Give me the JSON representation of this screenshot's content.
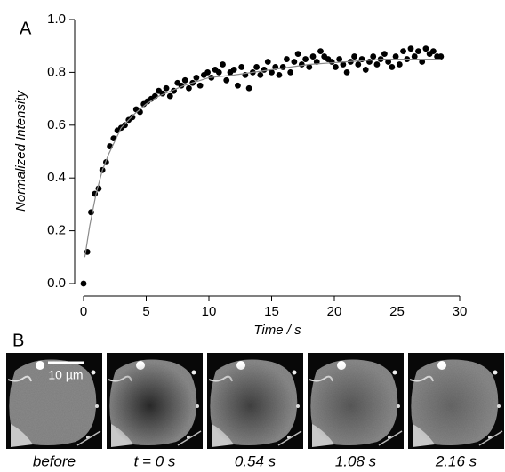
{
  "panel_labels": [
    "A",
    "B"
  ],
  "chart_data": {
    "type": "scatter",
    "y_label": "Normalized Intensity",
    "x_label": "Time  / s",
    "xlim": [
      0,
      30
    ],
    "xticks": [
      0,
      5,
      10,
      15,
      20,
      25,
      30
    ],
    "ylim": [
      0,
      1
    ],
    "yticks": [
      {
        "value": 0,
        "label": "0.0"
      },
      0.2,
      0.4,
      0.6,
      0.8,
      {
        "value": 1,
        "label": "1.0"
      }
    ],
    "series": [
      {
        "type": "scatter",
        "color": "#000000",
        "x": [
          0,
          0.3,
          0.6,
          0.9,
          1.2,
          1.5,
          1.8,
          2.1,
          2.4,
          2.7,
          3.0,
          3.3,
          3.6,
          3.9,
          4.2,
          4.5,
          4.8,
          5.1,
          5.4,
          5.7,
          6.0,
          6.3,
          6.6,
          6.9,
          7.2,
          7.5,
          7.8,
          8.1,
          8.4,
          8.7,
          9.0,
          9.3,
          9.6,
          9.9,
          10.2,
          10.5,
          10.8,
          11.1,
          11.4,
          11.7,
          12.0,
          12.3,
          12.6,
          12.9,
          13.2,
          13.5,
          13.8,
          14.1,
          14.4,
          14.7,
          15.0,
          15.3,
          15.6,
          15.9,
          16.2,
          16.5,
          16.8,
          17.1,
          17.4,
          17.7,
          18.0,
          18.3,
          18.6,
          18.9,
          19.2,
          19.5,
          19.8,
          20.1,
          20.4,
          20.7,
          21.0,
          21.3,
          21.6,
          21.9,
          22.2,
          22.5,
          22.8,
          23.1,
          23.4,
          23.7,
          24.0,
          24.3,
          24.6,
          24.9,
          25.2,
          25.5,
          25.8,
          26.1,
          26.4,
          26.7,
          27.0,
          27.3,
          27.6,
          27.9,
          28.2,
          28.5
        ],
        "values": [
          0,
          0.12,
          0.27,
          0.34,
          0.36,
          0.43,
          0.46,
          0.52,
          0.55,
          0.58,
          0.59,
          0.6,
          0.62,
          0.63,
          0.66,
          0.65,
          0.68,
          0.69,
          0.7,
          0.71,
          0.73,
          0.72,
          0.74,
          0.71,
          0.73,
          0.76,
          0.75,
          0.77,
          0.74,
          0.76,
          0.78,
          0.75,
          0.79,
          0.8,
          0.78,
          0.81,
          0.8,
          0.83,
          0.77,
          0.8,
          0.81,
          0.75,
          0.82,
          0.79,
          0.74,
          0.8,
          0.82,
          0.79,
          0.81,
          0.84,
          0.8,
          0.82,
          0.79,
          0.82,
          0.85,
          0.8,
          0.84,
          0.87,
          0.83,
          0.85,
          0.82,
          0.86,
          0.84,
          0.88,
          0.86,
          0.85,
          0.84,
          0.82,
          0.85,
          0.83,
          0.8,
          0.84,
          0.86,
          0.83,
          0.85,
          0.81,
          0.84,
          0.86,
          0.83,
          0.85,
          0.87,
          0.84,
          0.82,
          0.86,
          0.83,
          0.88,
          0.85,
          0.89,
          0.86,
          0.88,
          0.84,
          0.89,
          0.87,
          0.88,
          0.86,
          0.86
        ]
      },
      {
        "type": "line",
        "color": "#8a8a8a",
        "x": [
          0.1,
          0.5,
          1,
          1.5,
          2,
          3,
          4,
          5,
          6,
          8,
          10,
          12,
          15,
          18,
          21,
          24,
          28.5
        ],
        "values": [
          0.1,
          0.22,
          0.34,
          0.43,
          0.49,
          0.59,
          0.64,
          0.68,
          0.71,
          0.75,
          0.78,
          0.79,
          0.81,
          0.83,
          0.84,
          0.85,
          0.85
        ]
      }
    ]
  },
  "images": {
    "scale_bar": "10 µm",
    "labels": [
      "before",
      "t = 0 s",
      "0.54 s",
      "1.08 s",
      "2.16 s"
    ]
  }
}
